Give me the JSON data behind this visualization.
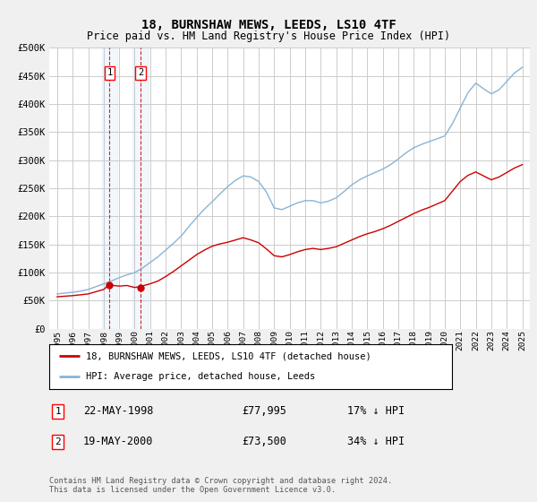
{
  "title": "18, BURNSHAW MEWS, LEEDS, LS10 4TF",
  "subtitle": "Price paid vs. HM Land Registry's House Price Index (HPI)",
  "ylim": [
    0,
    500000
  ],
  "yticks": [
    0,
    50000,
    100000,
    150000,
    200000,
    250000,
    300000,
    350000,
    400000,
    450000,
    500000
  ],
  "ytick_labels": [
    "£0",
    "£50K",
    "£100K",
    "£150K",
    "£200K",
    "£250K",
    "£300K",
    "£350K",
    "£400K",
    "£450K",
    "£500K"
  ],
  "hpi_color": "#8ab4d4",
  "price_color": "#cc0000",
  "purchase1": {
    "date": "22-MAY-1998",
    "price": "77,995",
    "pct": "17%",
    "dir": "↓"
  },
  "purchase2": {
    "date": "19-MAY-2000",
    "price": "73,500",
    "pct": "34%",
    "dir": "↓"
  },
  "legend_label_red": "18, BURNSHAW MEWS, LEEDS, LS10 4TF (detached house)",
  "legend_label_blue": "HPI: Average price, detached house, Leeds",
  "copyright": "Contains HM Land Registry data © Crown copyright and database right 2024.\nThis data is licensed under the Open Government Licence v3.0.",
  "hpi_years": [
    1995,
    1995.5,
    1996,
    1996.5,
    1997,
    1997.5,
    1998,
    1998.5,
    1999,
    1999.5,
    2000,
    2000.5,
    2001,
    2001.5,
    2002,
    2002.5,
    2003,
    2003.5,
    2004,
    2004.5,
    2005,
    2005.5,
    2006,
    2006.5,
    2007,
    2007.5,
    2008,
    2008.5,
    2009,
    2009.5,
    2010,
    2010.5,
    2011,
    2011.5,
    2012,
    2012.5,
    2013,
    2013.5,
    2014,
    2014.5,
    2015,
    2015.5,
    2016,
    2016.5,
    2017,
    2017.5,
    2018,
    2018.5,
    2019,
    2019.5,
    2020,
    2020.5,
    2021,
    2021.5,
    2022,
    2022.5,
    2023,
    2023.5,
    2024,
    2024.5,
    2025
  ],
  "hpi_values": [
    62000,
    63500,
    65000,
    67000,
    70000,
    75000,
    80000,
    85000,
    91000,
    96000,
    100000,
    108000,
    118000,
    128000,
    140000,
    152000,
    165000,
    182000,
    198000,
    213000,
    226000,
    240000,
    253000,
    264000,
    272000,
    270000,
    262000,
    243000,
    215000,
    212000,
    218000,
    224000,
    228000,
    228000,
    224000,
    227000,
    233000,
    244000,
    256000,
    265000,
    272000,
    278000,
    284000,
    292000,
    302000,
    313000,
    322000,
    328000,
    333000,
    338000,
    343000,
    365000,
    393000,
    420000,
    437000,
    427000,
    418000,
    425000,
    440000,
    455000,
    465000
  ],
  "price_years": [
    1995,
    1995.5,
    1996,
    1996.5,
    1997,
    1997.5,
    1998,
    1998.33,
    1999,
    1999.5,
    2000,
    2000.33,
    2001,
    2001.5,
    2002,
    2002.5,
    2003,
    2003.5,
    2004,
    2004.5,
    2005,
    2005.5,
    2006,
    2006.5,
    2007,
    2007.5,
    2008,
    2008.5,
    2009,
    2009.5,
    2010,
    2010.5,
    2011,
    2011.5,
    2012,
    2012.5,
    2013,
    2013.5,
    2014,
    2014.5,
    2015,
    2015.5,
    2016,
    2016.5,
    2017,
    2017.5,
    2018,
    2018.5,
    2019,
    2019.5,
    2020,
    2020.5,
    2021,
    2021.5,
    2022,
    2022.5,
    2023,
    2023.5,
    2024,
    2024.5,
    2025
  ],
  "price_values": [
    57000,
    58000,
    59000,
    60500,
    62000,
    66000,
    70000,
    77995,
    76000,
    77000,
    73500,
    75000,
    80000,
    85000,
    93000,
    102000,
    112000,
    122000,
    132000,
    140000,
    147000,
    151000,
    154000,
    158000,
    162000,
    158000,
    153000,
    142000,
    130000,
    128000,
    132000,
    137000,
    141000,
    143000,
    141000,
    143000,
    146000,
    152000,
    158000,
    164000,
    169000,
    173000,
    178000,
    184000,
    191000,
    198000,
    205000,
    211000,
    216000,
    222000,
    228000,
    245000,
    262000,
    273000,
    279000,
    272000,
    265000,
    270000,
    278000,
    286000,
    292000
  ],
  "xlim_min": 1994.5,
  "xlim_max": 2025.5,
  "purchase1_x": 1998.38,
  "purchase1_y": 77995,
  "purchase2_x": 2000.38,
  "purchase2_y": 73500,
  "bg_color": "#f0f0f0",
  "plot_bg": "#ffffff",
  "grid_color": "#cccccc"
}
